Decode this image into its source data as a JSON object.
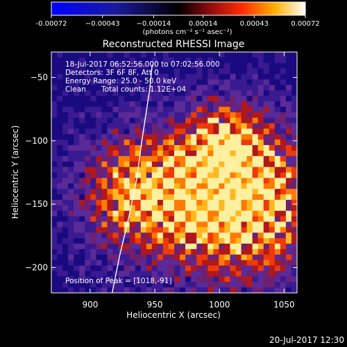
{
  "chart_data": {
    "type": "heatmap",
    "title": "Reconstructed RHESSI Image",
    "xlabel": "Heliocentric X (arcsec)",
    "ylabel": "Heliocentric Y (arcsec)",
    "xlim": [
      870,
      1060
    ],
    "ylim": [
      -220,
      -30
    ],
    "x_ticks": [
      900,
      950,
      1000,
      1050
    ],
    "x_tick_labels": [
      "900",
      "950",
      "1000",
      "1050"
    ],
    "y_ticks": [
      -50,
      -100,
      -150,
      -200
    ],
    "y_tick_labels": [
      "−50",
      "−100",
      "−150",
      "−200"
    ],
    "colorbar": {
      "range": [
        -0.00072,
        0.00072
      ],
      "ticks": [
        -0.00072,
        -0.00043,
        -0.00014,
        0.00014,
        0.00043,
        0.00072
      ],
      "tick_labels": [
        "-0.00072",
        "−0.00043",
        "−0.00014",
        "0.00014",
        "0.00043",
        "0.00072"
      ],
      "units_label": "(photons cm⁻² s⁻¹ asec⁻²)"
    },
    "annotations": {
      "time_range": "18-Jul-2017 06:52:56.000 to 07:02:56.000",
      "detectors": "Detectors: 3F 6F 8F, Att 0",
      "energy_range": "Energy Range: 25.0 - 50.0 keV",
      "method": "Clean",
      "total_counts": "Total counts: 1.12E+04",
      "peak": "Position of Peak = [1018,-91]"
    },
    "limb_curve": [
      [
        917,
        -220
      ],
      [
        923,
        -190
      ],
      [
        930,
        -160
      ],
      [
        936,
        -130
      ],
      [
        940,
        -100
      ],
      [
        943,
        -80
      ],
      [
        946,
        -60
      ],
      [
        948,
        -40
      ]
    ],
    "peak_position": [
      1018,
      -91
    ]
  },
  "footer_timestamp": "20-Jul-2017 12:30"
}
